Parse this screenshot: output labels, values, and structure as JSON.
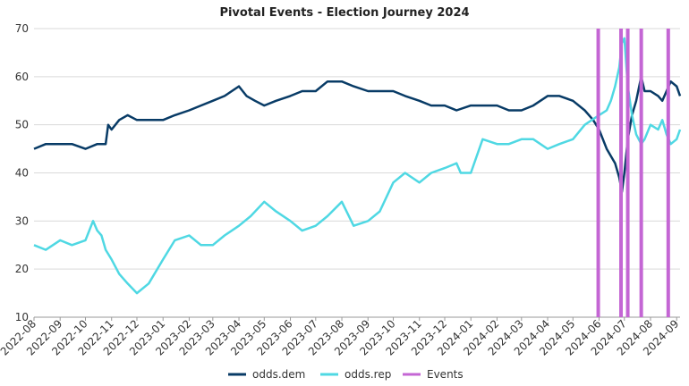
{
  "chart_data": {
    "type": "line",
    "title": "Pivotal Events - Election Journey 2024",
    "xlabel": "",
    "ylabel": "",
    "ylim": [
      10,
      70
    ],
    "yticks": [
      10,
      20,
      30,
      40,
      50,
      60,
      70
    ],
    "xlim": [
      "2022-08-01",
      "2024-09-05"
    ],
    "xticks": [
      "2022-08",
      "2022-09",
      "2022-10",
      "2022-11",
      "2022-12",
      "2023-01",
      "2023-02",
      "2023-03",
      "2023-04",
      "2023-05",
      "2023-06",
      "2023-07",
      "2023-08",
      "2023-09",
      "2023-10",
      "2023-11",
      "2023-12",
      "2024-01",
      "2024-02",
      "2024-03",
      "2024-04",
      "2024-05",
      "2024-06",
      "2024-07",
      "2024-08",
      "2024-09"
    ],
    "grid": "horizontal",
    "legend_position": "bottom",
    "colors": {
      "odds.dem": "#083b66",
      "odds.rep": "#4fd8e3",
      "Events": "#c466d4"
    },
    "series": [
      {
        "name": "odds.dem",
        "x": [
          "2022-08-01",
          "2022-08-15",
          "2022-09-01",
          "2022-09-15",
          "2022-10-01",
          "2022-10-15",
          "2022-10-25",
          "2022-10-28",
          "2022-11-01",
          "2022-11-10",
          "2022-11-20",
          "2022-12-01",
          "2022-12-15",
          "2023-01-01",
          "2023-01-15",
          "2023-02-01",
          "2023-02-15",
          "2023-03-01",
          "2023-03-15",
          "2023-04-01",
          "2023-04-10",
          "2023-04-20",
          "2023-05-01",
          "2023-05-15",
          "2023-06-01",
          "2023-06-15",
          "2023-07-01",
          "2023-07-15",
          "2023-08-01",
          "2023-08-15",
          "2023-09-01",
          "2023-09-15",
          "2023-10-01",
          "2023-10-15",
          "2023-11-01",
          "2023-11-15",
          "2023-12-01",
          "2023-12-15",
          "2024-01-01",
          "2024-01-15",
          "2024-02-01",
          "2024-02-15",
          "2024-03-01",
          "2024-03-15",
          "2024-04-01",
          "2024-04-15",
          "2024-05-01",
          "2024-05-15",
          "2024-05-25",
          "2024-06-01",
          "2024-06-10",
          "2024-06-20",
          "2024-06-25",
          "2024-06-28",
          "2024-07-01",
          "2024-07-05",
          "2024-07-10",
          "2024-07-15",
          "2024-07-21",
          "2024-07-25",
          "2024-08-01",
          "2024-08-10",
          "2024-08-15",
          "2024-08-20",
          "2024-08-25",
          "2024-09-01",
          "2024-09-05"
        ],
        "values": [
          45,
          46,
          46,
          46,
          45,
          46,
          46,
          50,
          49,
          51,
          52,
          51,
          51,
          51,
          52,
          53,
          54,
          55,
          56,
          58,
          56,
          55,
          54,
          55,
          56,
          57,
          57,
          59,
          59,
          58,
          57,
          57,
          57,
          56,
          55,
          54,
          54,
          53,
          54,
          54,
          54,
          53,
          53,
          54,
          56,
          56,
          55,
          53,
          51,
          49,
          45,
          42,
          39,
          36,
          40,
          47,
          52,
          55,
          60,
          57,
          57,
          56,
          55,
          57,
          59,
          58,
          56
        ]
      },
      {
        "name": "odds.rep",
        "x": [
          "2022-08-01",
          "2022-08-15",
          "2022-09-01",
          "2022-09-15",
          "2022-10-01",
          "2022-10-10",
          "2022-10-15",
          "2022-10-20",
          "2022-10-25",
          "2022-11-01",
          "2022-11-10",
          "2022-11-20",
          "2022-12-01",
          "2022-12-15",
          "2023-01-01",
          "2023-01-15",
          "2023-02-01",
          "2023-02-15",
          "2023-03-01",
          "2023-03-15",
          "2023-04-01",
          "2023-04-15",
          "2023-05-01",
          "2023-05-15",
          "2023-06-01",
          "2023-06-15",
          "2023-07-01",
          "2023-07-15",
          "2023-08-01",
          "2023-08-15",
          "2023-09-01",
          "2023-09-15",
          "2023-10-01",
          "2023-10-15",
          "2023-11-01",
          "2023-11-15",
          "2023-12-01",
          "2023-12-15",
          "2023-12-20",
          "2024-01-01",
          "2024-01-15",
          "2024-02-01",
          "2024-02-15",
          "2024-03-01",
          "2024-03-15",
          "2024-04-01",
          "2024-04-15",
          "2024-05-01",
          "2024-05-15",
          "2024-06-01",
          "2024-06-10",
          "2024-06-15",
          "2024-06-20",
          "2024-06-25",
          "2024-06-28",
          "2024-07-01",
          "2024-07-05",
          "2024-07-10",
          "2024-07-15",
          "2024-07-21",
          "2024-07-25",
          "2024-08-01",
          "2024-08-10",
          "2024-08-15",
          "2024-08-20",
          "2024-08-25",
          "2024-09-01",
          "2024-09-05"
        ],
        "values": [
          25,
          24,
          26,
          25,
          26,
          30,
          28,
          27,
          24,
          22,
          19,
          17,
          15,
          17,
          22,
          26,
          27,
          25,
          25,
          27,
          29,
          31,
          34,
          32,
          30,
          28,
          29,
          31,
          34,
          29,
          30,
          32,
          38,
          40,
          38,
          40,
          41,
          42,
          40,
          40,
          47,
          46,
          46,
          47,
          47,
          45,
          46,
          47,
          50,
          52,
          53,
          55,
          58,
          62,
          67,
          68,
          58,
          52,
          48,
          46,
          47,
          50,
          49,
          51,
          48,
          46,
          47,
          49
        ]
      }
    ],
    "events": [
      {
        "name": "Events",
        "x": [
          "2024-05-31",
          "2024-06-27",
          "2024-07-05",
          "2024-07-21",
          "2024-08-22"
        ]
      }
    ]
  }
}
